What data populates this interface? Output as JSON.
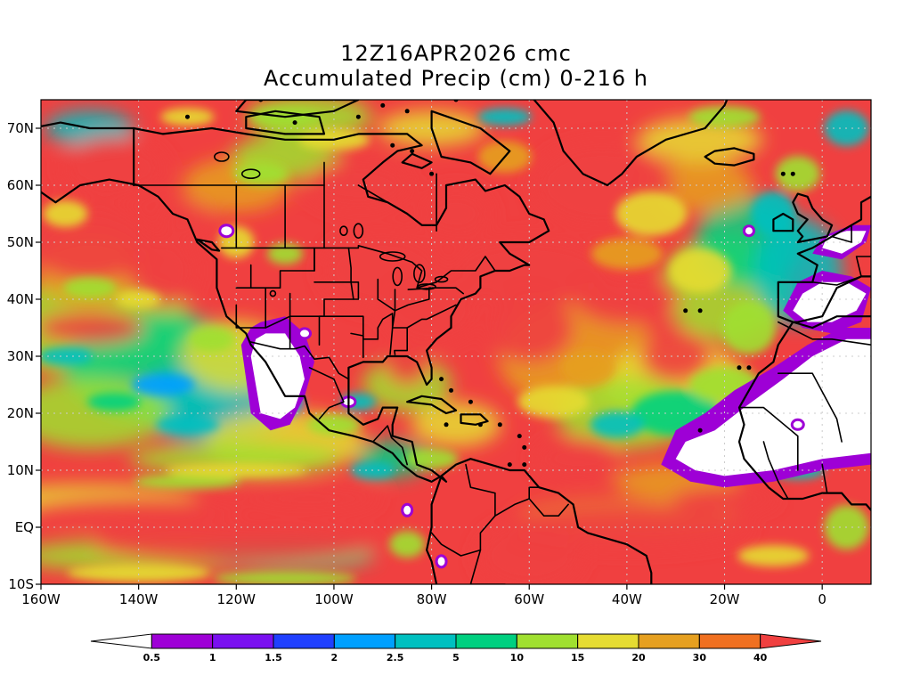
{
  "title": {
    "line1": "12Z16APR2026 cmc",
    "line2": "Accumulated Precip (cm) 0-216 h"
  },
  "map": {
    "projection": "latlon",
    "lon_range": [
      -160,
      10
    ],
    "lat_range": [
      -10,
      75
    ],
    "grid": "dotted",
    "y_ticks": [
      {
        "lat": 70,
        "label": "70N"
      },
      {
        "lat": 60,
        "label": "60N"
      },
      {
        "lat": 50,
        "label": "50N"
      },
      {
        "lat": 40,
        "label": "40N"
      },
      {
        "lat": 30,
        "label": "30N"
      },
      {
        "lat": 20,
        "label": "20N"
      },
      {
        "lat": 10,
        "label": "10N"
      },
      {
        "lat": 0,
        "label": "EQ"
      },
      {
        "lat": -10,
        "label": "10S"
      }
    ],
    "x_ticks": [
      {
        "lon": -160,
        "label": "160W"
      },
      {
        "lon": -140,
        "label": "140W"
      },
      {
        "lon": -120,
        "label": "120W"
      },
      {
        "lon": -100,
        "label": "100W"
      },
      {
        "lon": -80,
        "label": "80W"
      },
      {
        "lon": -60,
        "label": "60W"
      },
      {
        "lon": -40,
        "label": "40W"
      },
      {
        "lon": -20,
        "label": "20W"
      },
      {
        "lon": 0,
        "label": "0"
      }
    ]
  },
  "colorbar": {
    "labels": [
      "0.5",
      "1",
      "1.5",
      "2",
      "2.5",
      "5",
      "10",
      "15",
      "20",
      "30",
      "40"
    ],
    "colors": [
      "#ffffff",
      "#9e00d6",
      "#7a10f0",
      "#2040ff",
      "#00a0ff",
      "#00c0c0",
      "#00d080",
      "#a0e030",
      "#e6dc32",
      "#e6a020",
      "#f07020",
      "#f04040"
    ]
  }
}
